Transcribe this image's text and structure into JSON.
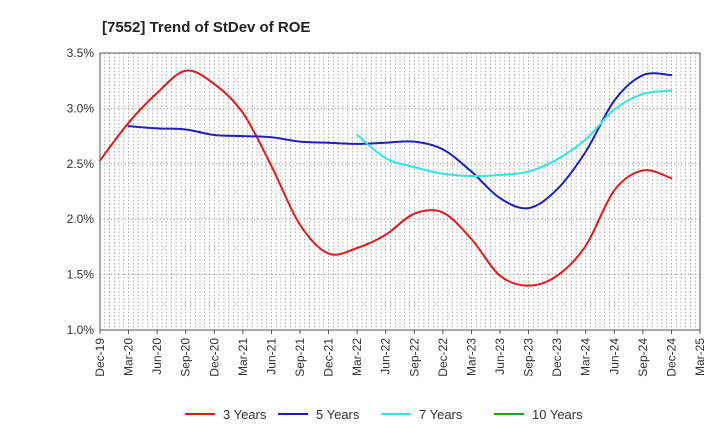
{
  "chart_data": {
    "type": "line",
    "title": "[7552]  Trend of StDev of ROE",
    "xlabel": "",
    "ylabel": "",
    "x": [
      "Dec-19",
      "Mar-20",
      "Jun-20",
      "Sep-20",
      "Dec-20",
      "Mar-21",
      "Jun-21",
      "Sep-21",
      "Dec-21",
      "Mar-22",
      "Jun-22",
      "Sep-22",
      "Dec-22",
      "Mar-23",
      "Jun-23",
      "Sep-23",
      "Dec-23",
      "Mar-24",
      "Jun-24",
      "Sep-24",
      "Dec-24",
      "Mar-25"
    ],
    "y_ticks": [
      "1.0%",
      "1.5%",
      "2.0%",
      "2.5%",
      "3.0%",
      "3.5%"
    ],
    "ylim": [
      1.0,
      3.5
    ],
    "grid": true,
    "legend_position": "bottom",
    "series": [
      {
        "name": "3 Years",
        "color": "#e31a1c",
        "values": [
          2.53,
          2.87,
          3.14,
          3.34,
          3.22,
          2.96,
          2.48,
          1.95,
          1.69,
          1.74,
          1.86,
          2.05,
          2.06,
          1.82,
          1.49,
          1.4,
          1.49,
          1.76,
          2.26,
          2.44,
          2.37,
          null
        ]
      },
      {
        "name": "5 Years",
        "color": "#1f1fbf",
        "values": [
          null,
          2.84,
          2.82,
          2.81,
          2.76,
          2.75,
          2.74,
          2.7,
          2.69,
          2.68,
          2.69,
          2.7,
          2.63,
          2.43,
          2.19,
          2.1,
          2.27,
          2.61,
          3.07,
          3.3,
          3.3,
          null
        ]
      },
      {
        "name": "7 Years",
        "color": "#33e6e6",
        "values": [
          null,
          null,
          null,
          null,
          null,
          null,
          null,
          null,
          null,
          2.76,
          2.55,
          2.47,
          2.41,
          2.39,
          2.4,
          2.43,
          2.54,
          2.72,
          2.99,
          3.13,
          3.16,
          null
        ]
      },
      {
        "name": "10 Years",
        "color": "#2a9a2a",
        "values": [
          null,
          null,
          null,
          null,
          null,
          null,
          null,
          null,
          null,
          null,
          null,
          null,
          null,
          null,
          null,
          null,
          null,
          null,
          null,
          null,
          null,
          null
        ]
      }
    ]
  }
}
